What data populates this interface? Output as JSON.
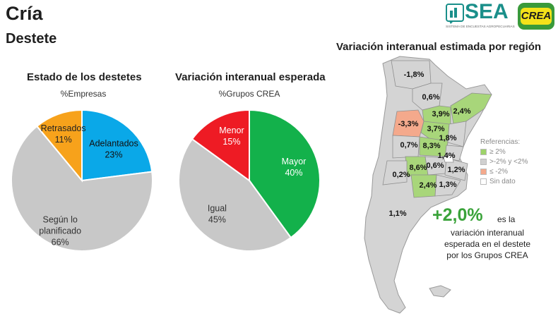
{
  "header": {
    "title": "Cría",
    "subtitle": "Destete"
  },
  "logos": {
    "sea_word": "SEA",
    "sea_tagline": "SISTEMA DE ENCUESTAS AGROPECUARIAS",
    "crea_word": "CREA"
  },
  "chart_data": [
    {
      "type": "pie",
      "title": "Estado de los destetes",
      "subtitle": "%Empresas",
      "slices": [
        {
          "label": "Adelantados",
          "value": 23,
          "display": "23%",
          "color": "#0aa8e8"
        },
        {
          "label": "Según lo planificado",
          "value": 66,
          "display": "66%",
          "color": "#c8c8c8"
        },
        {
          "label": "Retrasados",
          "value": 11,
          "display": "11%",
          "color": "#f7a21b"
        }
      ]
    },
    {
      "type": "pie",
      "title": "Variación interanual esperada",
      "subtitle": "%Grupos CREA",
      "slices": [
        {
          "label": "Mayor",
          "value": 40,
          "display": "40%",
          "color": "#13b14b"
        },
        {
          "label": "Igual",
          "value": 45,
          "display": "45%",
          "color": "#c8c8c8"
        },
        {
          "label": "Menor",
          "value": 15,
          "display": "15%",
          "color": "#ee1b24"
        }
      ]
    }
  ],
  "map": {
    "title": "Variación interanual estimada por región",
    "regions": [
      {
        "value": "-1,8%",
        "category": "gray"
      },
      {
        "value": "0,6%",
        "category": "gray"
      },
      {
        "value": "3,9%",
        "category": "green"
      },
      {
        "value": "2,4%",
        "category": "green"
      },
      {
        "value": "-3,3%",
        "category": "red"
      },
      {
        "value": "3,7%",
        "category": "green"
      },
      {
        "value": "1,8%",
        "category": "gray"
      },
      {
        "value": "0,7%",
        "category": "gray"
      },
      {
        "value": "8,3%",
        "category": "green"
      },
      {
        "value": "1,4%",
        "category": "gray"
      },
      {
        "value": "8,6%",
        "category": "green"
      },
      {
        "value": "0,6%",
        "category": "gray"
      },
      {
        "value": "1,2%",
        "category": "gray"
      },
      {
        "value": "0,2%",
        "category": "gray"
      },
      {
        "value": "2,4%",
        "category": "green"
      },
      {
        "value": "1,3%",
        "category": "gray"
      },
      {
        "value": "1,1%",
        "category": "gray"
      }
    ],
    "legend": {
      "title": "Referencias:",
      "items": [
        {
          "label": "≥ 2%",
          "color": "#9ed36a"
        },
        {
          "label": ">-2% y <2%",
          "color": "#d0d0d0"
        },
        {
          "label": "≤ -2%",
          "color": "#f4a98c"
        },
        {
          "label": "Sin dato",
          "color": "#ffffff"
        }
      ]
    }
  },
  "highlight": {
    "value": "+2,0%",
    "rest": "es la",
    "lines": [
      "variación interanual",
      "esperada en el destete",
      "por los Grupos CREA"
    ]
  }
}
